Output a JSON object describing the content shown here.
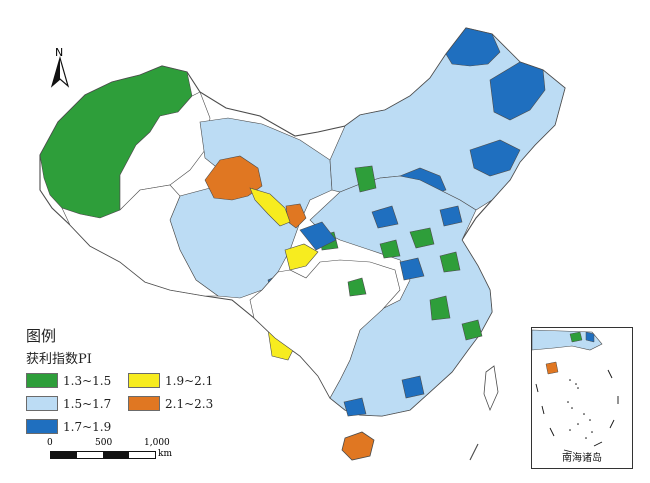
{
  "north_label": "N",
  "legend": {
    "title": "图例",
    "subtitle": "获利指数PI",
    "items": [
      {
        "label": "1.3~1.5",
        "color": "#2e9e3a"
      },
      {
        "label": "1.9~2.1",
        "color": "#f7ec1f"
      },
      {
        "label": "1.5~1.7",
        "color": "#bcdcf4"
      },
      {
        "label": "2.1~2.3",
        "color": "#e07722"
      },
      {
        "label": "1.7~1.9",
        "color": "#1f6fbf"
      }
    ]
  },
  "scale": {
    "ticks": [
      "0",
      "500",
      "1,000"
    ],
    "unit": "km"
  },
  "inset": {
    "label": "南海诸岛"
  },
  "colors": {
    "ocean": "#ffffff",
    "boundary": "#4b4b4b",
    "empty_region": "#ffffff"
  }
}
